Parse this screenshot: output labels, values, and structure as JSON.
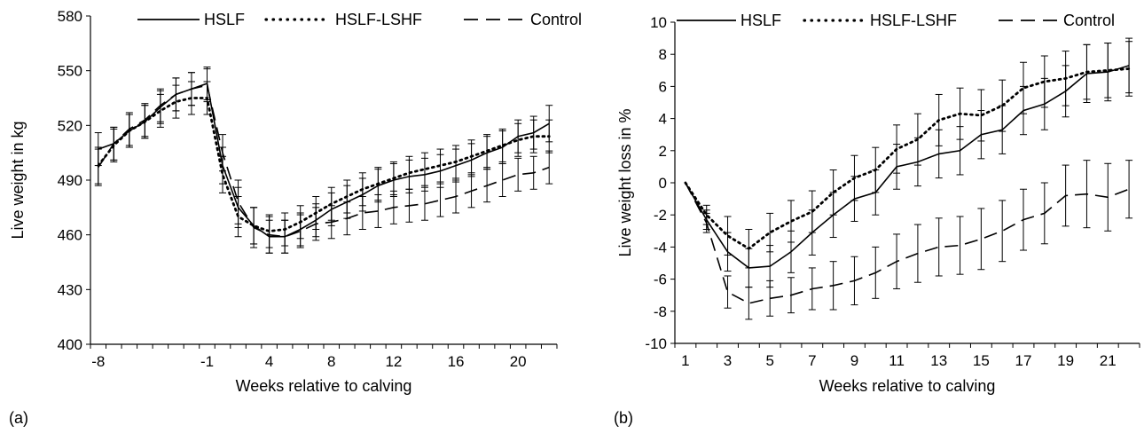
{
  "chart_data": [
    {
      "type": "line",
      "panel_label": "(a)",
      "xlabel": "Weeks relative to calving",
      "ylabel": "Live weight in kg",
      "ylim": [
        400,
        580
      ],
      "y_ticks": [
        "400",
        "430",
        "460",
        "490",
        "520",
        "550",
        "580"
      ],
      "categories": [
        "-8",
        "-7",
        "-6",
        "-5",
        "-4",
        "-3",
        "-2",
        "-1",
        "1",
        "2",
        "3",
        "4",
        "5",
        "6",
        "7",
        "8",
        "9",
        "10",
        "11",
        "12",
        "13",
        "14",
        "15",
        "16",
        "17",
        "18",
        "19",
        "20",
        "21",
        "22"
      ],
      "x_tick_labels": [
        "-8",
        "",
        "",
        "",
        "",
        "",
        "",
        "-1",
        "",
        "",
        "",
        "4",
        "",
        "",
        "",
        "8",
        "",
        "",
        "",
        "12",
        "",
        "",
        "",
        "16",
        "",
        "",
        "",
        "20",
        "",
        ""
      ],
      "legend_position": "top",
      "series": [
        {
          "name": "HSLF",
          "style": "solid",
          "values": [
            507,
            510,
            517,
            522,
            530,
            537,
            540,
            543,
            498,
            475,
            465,
            459,
            459,
            463,
            468,
            474,
            478,
            482,
            487,
            490,
            492,
            493,
            495,
            498,
            501,
            505,
            508,
            514,
            516,
            521
          ],
          "errors": [
            9,
            9,
            9,
            9,
            9,
            9,
            9,
            9,
            10,
            11,
            10,
            9,
            9,
            9,
            9,
            9,
            9,
            9,
            9,
            9,
            9,
            9,
            9,
            9,
            9,
            9,
            9,
            9,
            9,
            10
          ]
        },
        {
          "name": "HSLF-LSHF",
          "style": "dotted",
          "values": [
            498,
            509,
            517,
            522,
            528,
            533,
            535,
            535,
            493,
            470,
            465,
            462,
            463,
            467,
            472,
            477,
            481,
            485,
            488,
            491,
            494,
            496,
            498,
            500,
            503,
            506,
            509,
            512,
            514,
            514
          ],
          "errors": [
            10,
            9,
            9,
            9,
            9,
            9,
            9,
            9,
            10,
            11,
            10,
            9,
            9,
            9,
            9,
            9,
            9,
            9,
            9,
            9,
            9,
            9,
            9,
            9,
            9,
            9,
            9,
            9,
            9,
            9
          ]
        },
        {
          "name": "Control",
          "style": "dashed",
          "values": [
            497,
            510,
            518,
            523,
            531,
            537,
            540,
            542,
            505,
            478,
            464,
            460,
            459,
            462,
            466,
            467,
            469,
            472,
            473,
            475,
            476,
            477,
            479,
            481,
            484,
            487,
            490,
            493,
            494,
            497
          ],
          "errors": [
            10,
            9,
            9,
            9,
            9,
            9,
            9,
            9,
            10,
            12,
            11,
            10,
            9,
            9,
            9,
            9,
            9,
            9,
            9,
            9,
            9,
            9,
            9,
            9,
            9,
            9,
            9,
            9,
            9,
            9
          ]
        }
      ]
    },
    {
      "type": "line",
      "panel_label": "(b)",
      "xlabel": "Weeks relative to calving",
      "ylabel": "Live weight loss in %",
      "ylim": [
        -10,
        10
      ],
      "y_ticks": [
        "-10",
        "-8",
        "-6",
        "-4",
        "-2",
        "0",
        "2",
        "4",
        "6",
        "8",
        "10"
      ],
      "categories": [
        "1",
        "2",
        "3",
        "4",
        "5",
        "6",
        "7",
        "8",
        "9",
        "10",
        "11",
        "12",
        "13",
        "14",
        "15",
        "16",
        "17",
        "18",
        "19",
        "20",
        "21",
        "22"
      ],
      "x_tick_labels": [
        "1",
        "",
        "3",
        "",
        "5",
        "",
        "7",
        "",
        "9",
        "",
        "11",
        "",
        "13",
        "",
        "15",
        "",
        "17",
        "",
        "19",
        "",
        "21",
        ""
      ],
      "legend_position": "top",
      "series": [
        {
          "name": "HSLF",
          "style": "solid",
          "values": [
            0,
            -2.3,
            -4.3,
            -5.3,
            -5.2,
            -4.3,
            -3.1,
            -2.0,
            -1.0,
            -0.6,
            1.0,
            1.3,
            1.8,
            2.0,
            3.0,
            3.3,
            4.5,
            4.9,
            5.7,
            6.8,
            6.9,
            7.3
          ],
          "errors": [
            0,
            0.6,
            1.2,
            1.2,
            1.3,
            1.3,
            1.4,
            1.4,
            1.4,
            1.4,
            1.4,
            1.5,
            1.5,
            1.5,
            1.5,
            1.5,
            1.5,
            1.6,
            1.6,
            1.8,
            1.8,
            1.7
          ]
        },
        {
          "name": "HSLF-LSHF",
          "style": "dotted",
          "values": [
            0,
            -2.0,
            -3.3,
            -4.1,
            -3.1,
            -2.4,
            -1.8,
            -0.6,
            0.3,
            0.8,
            2.1,
            2.7,
            3.9,
            4.3,
            4.2,
            4.8,
            5.9,
            6.3,
            6.5,
            6.9,
            7.0,
            7.1
          ],
          "errors": [
            0,
            0.6,
            1.2,
            1.2,
            1.2,
            1.3,
            1.3,
            1.4,
            1.4,
            1.4,
            1.5,
            1.6,
            1.6,
            1.6,
            1.6,
            1.6,
            1.6,
            1.6,
            1.7,
            1.7,
            1.7,
            1.7
          ]
        },
        {
          "name": "Control",
          "style": "dashed",
          "values": [
            0,
            -2.5,
            -6.8,
            -7.5,
            -7.2,
            -7.0,
            -6.6,
            -6.4,
            -6.1,
            -5.6,
            -4.9,
            -4.4,
            -4.0,
            -3.9,
            -3.5,
            -3.0,
            -2.3,
            -1.9,
            -0.8,
            -0.7,
            -0.9,
            -0.4
          ],
          "errors": [
            0,
            0.6,
            1.0,
            1.0,
            1.1,
            1.1,
            1.3,
            1.5,
            1.5,
            1.6,
            1.7,
            1.8,
            1.8,
            1.8,
            1.9,
            1.9,
            1.9,
            1.9,
            1.9,
            2.1,
            2.1,
            1.8
          ]
        }
      ]
    }
  ]
}
